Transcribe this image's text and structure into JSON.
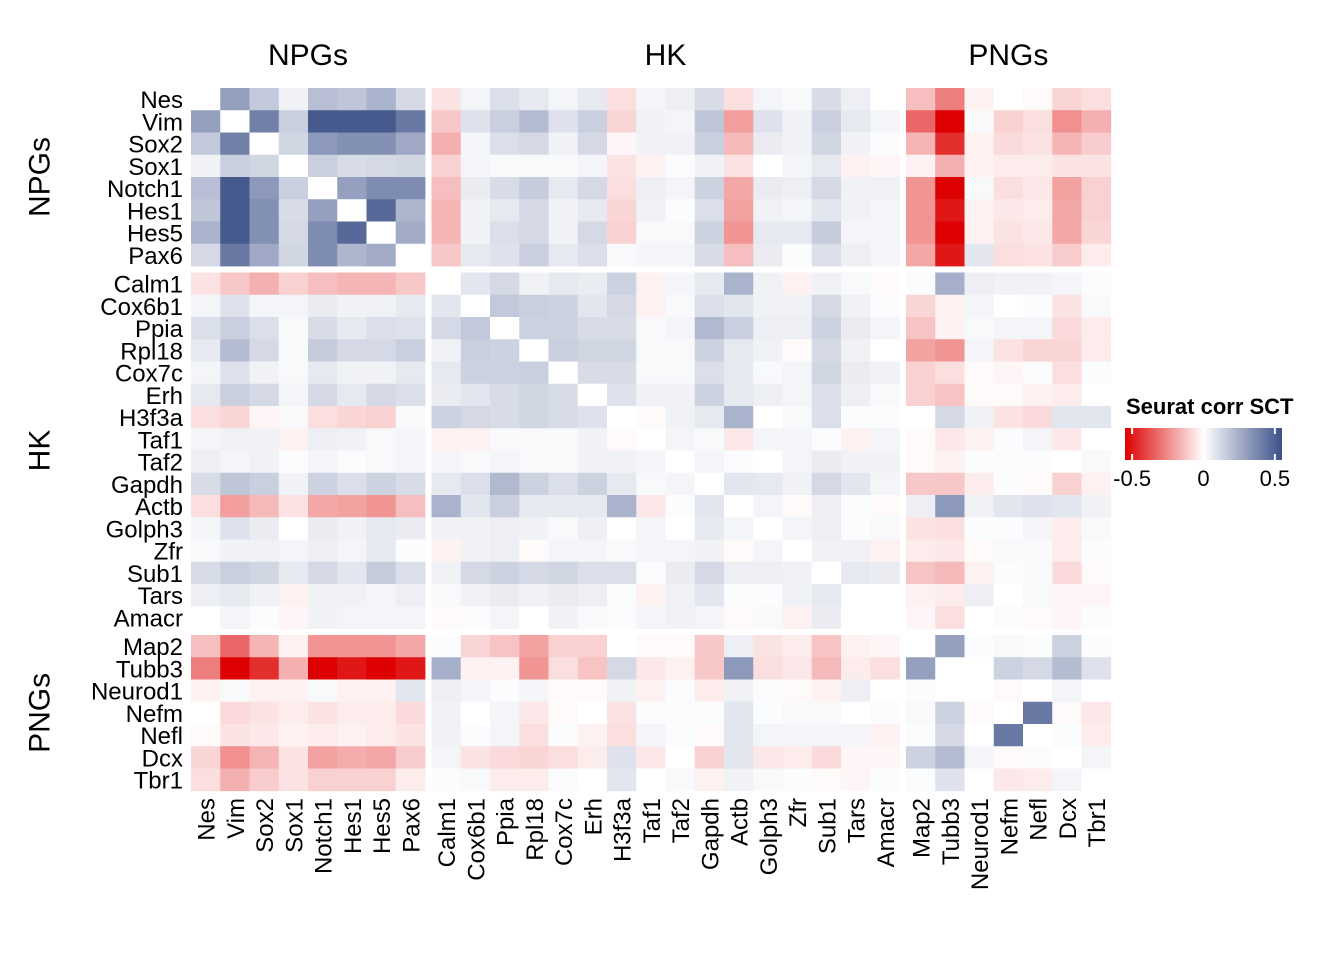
{
  "chart_data": {
    "type": "heatmap",
    "title": "",
    "legend": {
      "title": "Seurat corr SCT",
      "ticks": [
        "-0.5",
        "0",
        "0.5"
      ],
      "tick_values": [
        -0.5,
        0,
        0.5
      ],
      "range": [
        -0.55,
        0.55
      ],
      "colors": {
        "low": "#DD0000",
        "mid": "#FFFFFF",
        "high": "#3B5088"
      },
      "placement": "right"
    },
    "groups": [
      {
        "name": "NPGs",
        "genes": [
          "Nes",
          "Vim",
          "Sox2",
          "Sox1",
          "Notch1",
          "Hes1",
          "Hes5",
          "Pax6"
        ]
      },
      {
        "name": "HK",
        "genes": [
          "Calm1",
          "Cox6b1",
          "Ppia",
          "Rpl18",
          "Cox7c",
          "Erh",
          "H3f3a",
          "Taf1",
          "Taf2",
          "Gapdh",
          "Actb",
          "Golph3",
          "Zfr",
          "Sub1",
          "Tars",
          "Amacr"
        ]
      },
      {
        "name": "PNGs",
        "genes": [
          "Map2",
          "Tubb3",
          "Neurod1",
          "Nefm",
          "Nefl",
          "Dcx",
          "Tbr1"
        ]
      }
    ],
    "rows": [
      "Nes",
      "Vim",
      "Sox2",
      "Sox1",
      "Notch1",
      "Hes1",
      "Hes5",
      "Pax6",
      "Calm1",
      "Cox6b1",
      "Ppia",
      "Rpl18",
      "Cox7c",
      "Erh",
      "H3f3a",
      "Taf1",
      "Taf2",
      "Gapdh",
      "Actb",
      "Golph3",
      "Zfr",
      "Sub1",
      "Tars",
      "Amacr",
      "Map2",
      "Tubb3",
      "Neurod1",
      "Nefm",
      "Nefl",
      "Dcx",
      "Tbr1"
    ],
    "columns": [
      "Nes",
      "Vim",
      "Sox2",
      "Sox1",
      "Notch1",
      "Hes1",
      "Hes5",
      "Pax6",
      "Calm1",
      "Cox6b1",
      "Ppia",
      "Rpl18",
      "Cox7c",
      "Erh",
      "H3f3a",
      "Taf1",
      "Taf2",
      "Gapdh",
      "Actb",
      "Golph3",
      "Zfr",
      "Sub1",
      "Tars",
      "Amacr",
      "Map2",
      "Tubb3",
      "Neurod1",
      "Nefm",
      "Nefl",
      "Dcx",
      "Tbr1"
    ],
    "values": [
      [
        null,
        0.3,
        0.17,
        0.04,
        0.2,
        0.18,
        0.24,
        0.12,
        -0.06,
        0.03,
        0.1,
        0.07,
        0.03,
        0.07,
        -0.07,
        0.03,
        0.05,
        0.11,
        -0.07,
        0.03,
        0.02,
        0.11,
        0.05,
        0.0,
        -0.14,
        -0.28,
        -0.03,
        0.0,
        -0.01,
        -0.09,
        -0.07
      ],
      [
        0.3,
        null,
        0.4,
        0.15,
        0.52,
        0.52,
        0.52,
        0.42,
        -0.12,
        0.09,
        0.15,
        0.21,
        0.09,
        0.15,
        -0.09,
        0.04,
        0.03,
        0.18,
        -0.21,
        0.09,
        0.04,
        0.15,
        0.07,
        0.03,
        -0.33,
        -0.55,
        0.02,
        -0.1,
        -0.07,
        -0.24,
        -0.17
      ],
      [
        0.17,
        0.4,
        null,
        0.13,
        0.32,
        0.35,
        0.35,
        0.27,
        -0.17,
        0.03,
        0.1,
        0.12,
        0.04,
        0.12,
        -0.02,
        0.04,
        0.04,
        0.15,
        -0.15,
        0.06,
        0.04,
        0.13,
        0.04,
        0.01,
        -0.16,
        -0.45,
        -0.03,
        -0.08,
        -0.06,
        -0.16,
        -0.11
      ],
      [
        0.04,
        0.15,
        0.13,
        null,
        0.15,
        0.11,
        0.12,
        0.13,
        -0.1,
        0.03,
        0.02,
        0.02,
        0.02,
        0.03,
        -0.06,
        -0.03,
        0.01,
        0.04,
        -0.06,
        0.0,
        0.03,
        0.07,
        -0.03,
        -0.02,
        -0.03,
        -0.17,
        -0.03,
        -0.04,
        -0.04,
        -0.06,
        -0.06
      ],
      [
        0.2,
        0.52,
        0.32,
        0.15,
        null,
        0.3,
        0.36,
        0.36,
        -0.14,
        0.06,
        0.11,
        0.16,
        0.07,
        0.12,
        -0.07,
        0.05,
        0.03,
        0.14,
        -0.19,
        0.06,
        0.05,
        0.12,
        0.04,
        0.04,
        -0.23,
        -0.55,
        0.02,
        -0.07,
        -0.05,
        -0.2,
        -0.1
      ],
      [
        0.18,
        0.52,
        0.35,
        0.11,
        0.3,
        null,
        0.47,
        0.23,
        -0.16,
        0.04,
        0.07,
        0.12,
        0.04,
        0.07,
        -0.09,
        0.04,
        0.01,
        0.1,
        -0.2,
        0.04,
        0.03,
        0.08,
        0.04,
        0.03,
        -0.23,
        -0.5,
        -0.03,
        -0.05,
        -0.04,
        -0.19,
        -0.1
      ],
      [
        0.24,
        0.52,
        0.35,
        0.12,
        0.36,
        0.47,
        null,
        0.26,
        -0.16,
        0.04,
        0.1,
        0.12,
        0.04,
        0.12,
        -0.1,
        0.02,
        0.02,
        0.14,
        -0.23,
        0.07,
        0.07,
        0.16,
        0.03,
        0.03,
        -0.23,
        -0.55,
        -0.03,
        -0.06,
        -0.05,
        -0.19,
        -0.09
      ],
      [
        0.12,
        0.42,
        0.27,
        0.13,
        0.36,
        0.23,
        0.26,
        null,
        -0.12,
        0.07,
        0.09,
        0.15,
        0.07,
        0.1,
        0.02,
        0.03,
        0.03,
        0.11,
        -0.14,
        0.06,
        0.01,
        0.1,
        0.05,
        0.03,
        -0.19,
        -0.5,
        0.08,
        -0.07,
        -0.06,
        -0.11,
        -0.04
      ],
      [
        -0.06,
        -0.12,
        -0.17,
        -0.1,
        -0.14,
        -0.16,
        -0.16,
        -0.12,
        null,
        0.08,
        0.12,
        0.04,
        0.07,
        0.06,
        0.14,
        -0.03,
        0.03,
        0.07,
        0.24,
        0.04,
        -0.03,
        0.04,
        0.02,
        -0.01,
        0.01,
        0.25,
        0.05,
        0.04,
        0.04,
        0.03,
        0.01
      ],
      [
        0.03,
        0.09,
        0.03,
        0.03,
        0.06,
        0.04,
        0.04,
        0.07,
        0.08,
        null,
        0.17,
        0.15,
        0.14,
        0.08,
        0.12,
        -0.03,
        0.02,
        0.1,
        0.08,
        0.04,
        0.04,
        0.12,
        0.04,
        0.01,
        -0.09,
        -0.03,
        0.03,
        0.0,
        0.01,
        -0.06,
        0.02
      ],
      [
        0.1,
        0.15,
        0.1,
        0.02,
        0.11,
        0.07,
        0.1,
        0.09,
        0.12,
        0.17,
        null,
        0.14,
        0.14,
        0.11,
        0.11,
        0.02,
        0.03,
        0.22,
        0.15,
        0.05,
        0.05,
        0.14,
        0.06,
        0.03,
        -0.13,
        -0.03,
        0.02,
        0.03,
        0.03,
        -0.08,
        -0.04
      ],
      [
        0.07,
        0.21,
        0.12,
        0.02,
        0.16,
        0.12,
        0.12,
        0.15,
        0.04,
        0.15,
        0.14,
        null,
        0.15,
        0.13,
        0.13,
        0.02,
        0.02,
        0.14,
        0.07,
        0.04,
        -0.01,
        0.12,
        0.04,
        0.0,
        -0.2,
        -0.23,
        0.03,
        -0.06,
        -0.09,
        -0.09,
        -0.04
      ],
      [
        0.03,
        0.09,
        0.04,
        0.02,
        0.07,
        0.04,
        0.04,
        0.07,
        0.07,
        0.14,
        0.14,
        0.15,
        null,
        0.11,
        0.11,
        0.02,
        0.02,
        0.1,
        0.07,
        0.02,
        0.03,
        0.13,
        0.06,
        0.04,
        -0.1,
        -0.07,
        -0.01,
        -0.02,
        0.01,
        -0.07,
        0.01
      ],
      [
        0.07,
        0.15,
        0.12,
        0.03,
        0.12,
        0.07,
        0.12,
        0.1,
        0.06,
        0.08,
        0.11,
        0.13,
        0.11,
        null,
        0.09,
        0.04,
        0.04,
        0.14,
        0.07,
        0.05,
        0.03,
        0.1,
        0.05,
        0.02,
        -0.1,
        -0.13,
        -0.01,
        -0.01,
        -0.03,
        -0.04,
        0.0
      ],
      [
        -0.07,
        -0.09,
        -0.02,
        0.02,
        -0.07,
        -0.09,
        -0.1,
        0.02,
        0.14,
        0.12,
        0.11,
        0.13,
        0.11,
        0.09,
        null,
        -0.01,
        0.04,
        0.07,
        0.24,
        0.0,
        0.02,
        0.1,
        0.01,
        0.01,
        0.0,
        0.12,
        0.04,
        -0.06,
        -0.08,
        0.08,
        0.08
      ],
      [
        0.03,
        0.04,
        0.04,
        -0.03,
        0.05,
        0.04,
        0.02,
        0.03,
        -0.03,
        -0.03,
        0.02,
        0.02,
        0.02,
        0.04,
        -0.01,
        null,
        0.03,
        0.02,
        -0.05,
        0.03,
        0.03,
        0.01,
        -0.03,
        0.03,
        -0.01,
        -0.05,
        -0.03,
        0.01,
        0.03,
        -0.05,
        0.0
      ],
      [
        0.05,
        0.03,
        0.04,
        0.01,
        0.03,
        0.01,
        0.02,
        0.03,
        0.03,
        0.02,
        0.03,
        0.02,
        0.02,
        0.04,
        0.04,
        0.03,
        null,
        0.03,
        0.01,
        0.0,
        0.03,
        0.06,
        0.04,
        0.04,
        -0.01,
        -0.03,
        0.01,
        0.01,
        0.01,
        0.0,
        0.02
      ],
      [
        0.11,
        0.18,
        0.15,
        0.04,
        0.14,
        0.1,
        0.14,
        0.11,
        0.07,
        0.1,
        0.22,
        0.14,
        0.1,
        0.14,
        0.07,
        0.02,
        0.03,
        null,
        0.08,
        0.07,
        0.04,
        0.12,
        0.08,
        0.03,
        -0.12,
        -0.12,
        -0.04,
        0.01,
        -0.01,
        -0.1,
        -0.03
      ],
      [
        -0.07,
        -0.21,
        -0.15,
        -0.06,
        -0.19,
        -0.2,
        -0.23,
        -0.14,
        0.24,
        0.08,
        0.15,
        0.07,
        0.07,
        0.07,
        0.24,
        -0.05,
        0.01,
        0.08,
        null,
        0.03,
        -0.01,
        0.05,
        0.01,
        -0.01,
        0.05,
        0.32,
        0.04,
        0.08,
        0.09,
        0.08,
        0.04
      ],
      [
        0.03,
        0.09,
        0.06,
        0.0,
        0.06,
        0.04,
        0.07,
        0.06,
        0.04,
        0.04,
        0.05,
        0.04,
        0.02,
        0.05,
        0.0,
        0.03,
        0.0,
        0.07,
        0.03,
        null,
        0.03,
        0.05,
        0.01,
        0.02,
        -0.06,
        -0.07,
        0.01,
        0.01,
        0.03,
        -0.04,
        0.02
      ],
      [
        0.02,
        0.04,
        0.04,
        0.03,
        0.05,
        0.03,
        0.07,
        0.01,
        -0.03,
        0.04,
        0.05,
        -0.01,
        0.03,
        0.03,
        0.02,
        0.03,
        0.03,
        0.04,
        -0.01,
        0.03,
        null,
        0.04,
        0.04,
        -0.03,
        -0.04,
        -0.05,
        -0.01,
        0.02,
        0.02,
        -0.04,
        0.01
      ],
      [
        0.11,
        0.15,
        0.13,
        0.07,
        0.12,
        0.08,
        0.16,
        0.1,
        0.04,
        0.12,
        0.14,
        0.12,
        0.13,
        0.1,
        0.1,
        0.01,
        0.06,
        0.12,
        0.05,
        0.05,
        0.04,
        null,
        0.07,
        0.06,
        -0.13,
        -0.15,
        -0.03,
        0.01,
        0.02,
        -0.08,
        -0.01
      ],
      [
        0.05,
        0.07,
        0.04,
        -0.03,
        0.04,
        0.04,
        0.03,
        0.05,
        0.02,
        0.04,
        0.06,
        0.04,
        0.06,
        0.05,
        0.01,
        -0.03,
        0.04,
        0.08,
        0.01,
        0.01,
        0.04,
        0.07,
        null,
        0.0,
        -0.03,
        -0.04,
        0.05,
        0.0,
        0.02,
        -0.02,
        -0.02
      ],
      [
        0.0,
        0.03,
        0.01,
        -0.02,
        0.04,
        0.03,
        0.03,
        0.03,
        -0.01,
        0.01,
        0.03,
        0.0,
        0.04,
        0.02,
        0.01,
        0.03,
        0.04,
        0.03,
        -0.01,
        0.02,
        -0.03,
        0.06,
        0.0,
        null,
        -0.02,
        -0.07,
        0.0,
        0.01,
        -0.01,
        -0.02,
        0.01
      ],
      [
        -0.14,
        -0.33,
        -0.16,
        -0.03,
        -0.23,
        -0.23,
        -0.23,
        -0.19,
        0.01,
        -0.09,
        -0.13,
        -0.2,
        -0.1,
        -0.1,
        0.0,
        -0.01,
        -0.01,
        -0.12,
        0.05,
        -0.06,
        -0.04,
        -0.13,
        -0.03,
        -0.02,
        null,
        0.3,
        0.01,
        0.02,
        0.01,
        0.14,
        0.01
      ],
      [
        -0.28,
        -0.55,
        -0.45,
        -0.17,
        -0.55,
        -0.5,
        -0.55,
        -0.5,
        0.25,
        -0.03,
        -0.03,
        -0.23,
        -0.07,
        -0.13,
        0.12,
        -0.05,
        -0.03,
        -0.12,
        0.32,
        -0.07,
        -0.05,
        -0.15,
        -0.04,
        -0.07,
        0.3,
        null,
        0.0,
        0.14,
        0.12,
        0.21,
        0.09
      ],
      [
        -0.03,
        0.02,
        -0.03,
        -0.03,
        0.02,
        -0.03,
        -0.03,
        0.08,
        0.05,
        0.03,
        0.01,
        0.03,
        -0.01,
        -0.01,
        0.04,
        -0.03,
        0.01,
        -0.04,
        0.04,
        0.01,
        -0.01,
        -0.03,
        0.05,
        0.0,
        0.01,
        0.0,
        null,
        -0.01,
        0.0,
        0.03,
        0.0
      ],
      [
        0.0,
        -0.08,
        -0.06,
        -0.04,
        -0.06,
        -0.04,
        -0.04,
        -0.08,
        0.04,
        0.0,
        0.03,
        -0.05,
        -0.01,
        0.0,
        -0.06,
        0.01,
        0.01,
        0.01,
        0.08,
        0.01,
        0.02,
        0.02,
        0.0,
        0.01,
        0.02,
        0.14,
        -0.01,
        null,
        0.42,
        -0.01,
        -0.05
      ],
      [
        -0.01,
        -0.06,
        -0.05,
        -0.03,
        -0.04,
        -0.03,
        -0.04,
        -0.06,
        0.04,
        0.01,
        0.03,
        -0.07,
        0.01,
        -0.03,
        -0.07,
        0.03,
        0.01,
        -0.01,
        0.08,
        0.03,
        0.03,
        0.03,
        0.03,
        -0.03,
        0.01,
        0.12,
        0.0,
        0.42,
        null,
        0.01,
        -0.04
      ],
      [
        -0.09,
        -0.24,
        -0.16,
        -0.06,
        -0.2,
        -0.18,
        -0.19,
        -0.11,
        0.03,
        -0.06,
        -0.08,
        -0.09,
        -0.07,
        -0.04,
        0.09,
        -0.05,
        0.0,
        -0.1,
        0.08,
        -0.05,
        -0.04,
        -0.08,
        -0.02,
        -0.02,
        0.14,
        0.21,
        0.03,
        -0.01,
        0.01,
        null,
        0.03
      ],
      [
        -0.07,
        -0.17,
        -0.11,
        -0.06,
        -0.1,
        -0.1,
        -0.1,
        -0.04,
        0.01,
        0.02,
        -0.04,
        -0.04,
        0.01,
        0.0,
        0.08,
        0.0,
        0.02,
        -0.03,
        0.04,
        0.02,
        0.01,
        -0.01,
        -0.02,
        0.01,
        0.01,
        0.09,
        0.0,
        -0.05,
        -0.04,
        0.03,
        null
      ]
    ]
  }
}
